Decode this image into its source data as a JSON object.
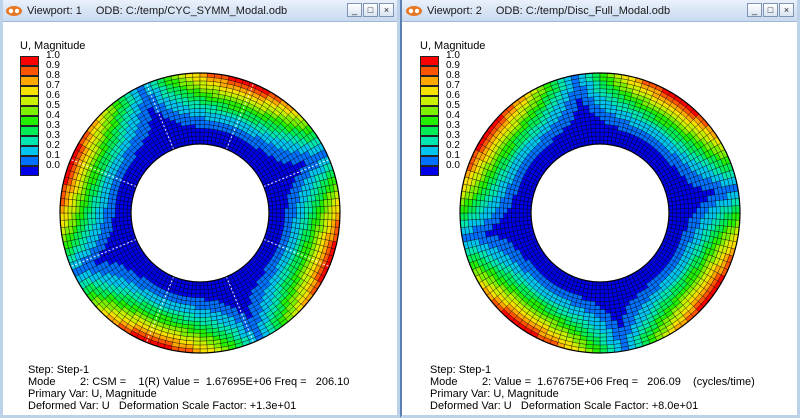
{
  "viewports": [
    {
      "label": "Viewport: 1",
      "odb": "ODB: C:/temp/CYC_SYMM_Modal.odb",
      "legend_title": "U, Magnitude",
      "legend_values": [
        "1.0",
        "0.9",
        "0.8",
        "0.7",
        "0.6",
        "0.5",
        "0.4",
        "0.3",
        "0.3",
        "0.2",
        "0.1",
        "0.0"
      ],
      "info": {
        "step": "Step: Step-1",
        "mode": "Mode        2: CSM =    1(R) Value =  1.67695E+06 Freq =   206.10",
        "primary": "Primary Var: U, Magnitude",
        "deformed": "Deformed Var: U   Deformation Scale Factor: +1.3e+01"
      },
      "plot": {
        "mode_nodal_diameters": 2,
        "phase_deg": 20,
        "sector_lines": true
      }
    },
    {
      "label": "Viewport: 2",
      "odb": "ODB: C:/temp/Disc_Full_Modal.odb",
      "legend_title": "U, Magnitude",
      "legend_values": [
        "1.0",
        "0.9",
        "0.8",
        "0.7",
        "0.6",
        "0.5",
        "0.4",
        "0.3",
        "0.3",
        "0.2",
        "0.1",
        "0.0"
      ],
      "info": {
        "step": "Step: Step-1",
        "mode": "Mode        2: Value =  1.67675E+06 Freq =   206.09    (cycles/time)",
        "primary": "Primary Var: U, Magnitude",
        "deformed": "Deformed Var: U   Deformation Scale Factor: +8.0e+01"
      },
      "plot": {
        "mode_nodal_diameters": 2,
        "phase_deg": 35,
        "sector_lines": false
      }
    }
  ],
  "legend_colors": [
    "#ff0000",
    "#ff5400",
    "#ffa800",
    "#f5e000",
    "#c8f000",
    "#7df000",
    "#22f000",
    "#00ee55",
    "#00e6b0",
    "#00c4ee",
    "#0070ff",
    "#0000e8"
  ],
  "window_controls": {
    "minimize": "_",
    "maximize": "□",
    "close": "×"
  }
}
